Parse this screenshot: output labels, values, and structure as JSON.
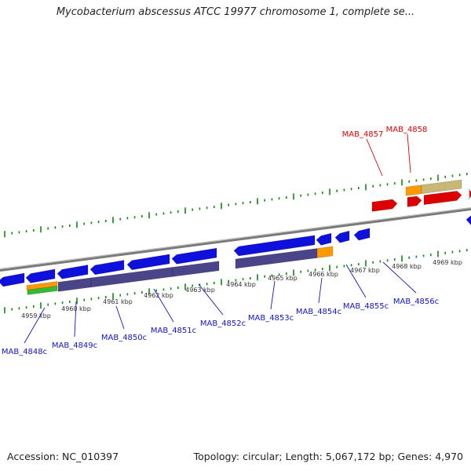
{
  "title": "Mycobacterium abscessus ATCC 19977 chromosome 1, complete se...",
  "footer": {
    "accession": "Accession: NC_010397",
    "summary": "Topology: circular; Length: 5,067,172 bp; Genes: 4,970"
  },
  "colors": {
    "forward_gene": "#dd0000",
    "reverse_gene": "#1010dd",
    "rna_purple": "#4a4488",
    "orange": "#ff9900",
    "khaki": "#c8b878",
    "green_tick": "#118811",
    "axis_gray": "#888888",
    "label_red": "#dd0000",
    "label_blue": "#1414c8"
  },
  "kbp_labels": [
    "4959 kbp",
    "4960 kbp",
    "4961 kbp",
    "4962 kbp",
    "4963 kbp",
    "4964 kbp",
    "4965 kbp",
    "4966 kbp",
    "4967 kbp",
    "4968 kbp",
    "4969 kbp"
  ],
  "reverse_labels": [
    "MAB_4848c",
    "MAB_4849c",
    "MAB_4850c",
    "MAB_4851c",
    "MAB_4852c",
    "MAB_4853c",
    "MAB_4854c",
    "MAB_4855c",
    "MAB_4856c"
  ],
  "forward_labels": [
    "MAB_4857",
    "MAB_4858"
  ]
}
